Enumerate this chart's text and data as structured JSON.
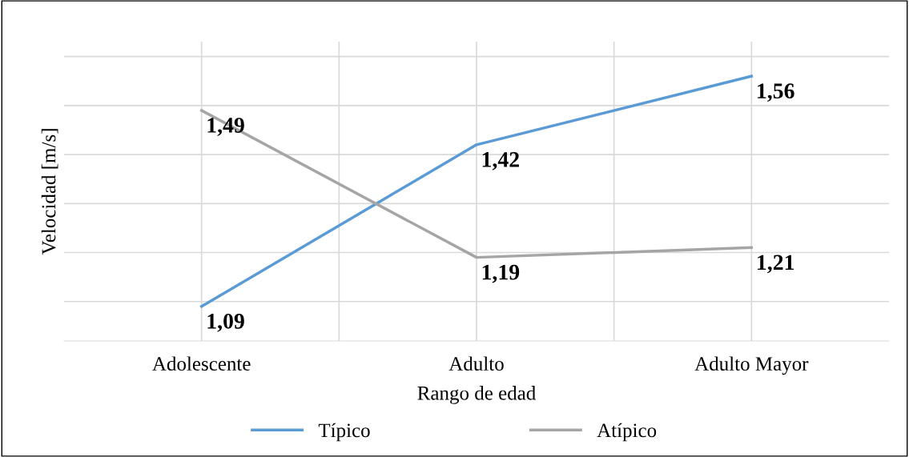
{
  "chart_data": {
    "type": "line",
    "xlabel": "Rango de edad",
    "ylabel": "Velocidad [m/s]",
    "categories": [
      "Adolescente",
      "Adulto",
      "Adulto Mayor"
    ],
    "series": [
      {
        "name": "Típico",
        "color": "#5b9bd5",
        "values": [
          1.09,
          1.42,
          1.56
        ],
        "value_labels": [
          "1,09",
          "1,42",
          "1,56"
        ]
      },
      {
        "name": "Atípico",
        "color": "#a5a5a5",
        "values": [
          1.49,
          1.19,
          1.21
        ],
        "value_labels": [
          "1,49",
          "1,19",
          "1,21"
        ]
      }
    ],
    "tick_labels": "x",
    "grid": true,
    "legend": "bottom",
    "marker": "none",
    "line_style": "solid"
  }
}
